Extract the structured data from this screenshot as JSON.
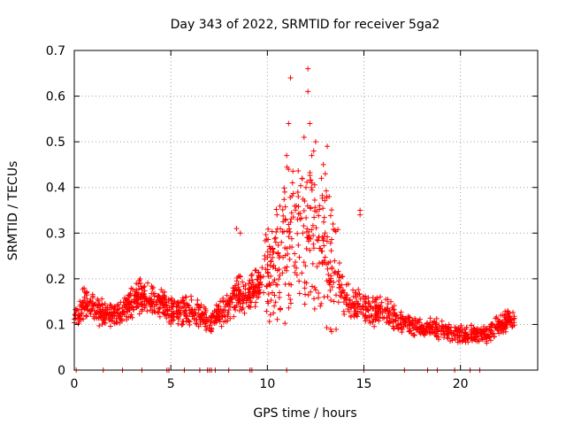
{
  "chart_data": {
    "type": "scatter",
    "title": "Day 343 of 2022, SRMTID for receiver 5ga2",
    "xlabel": "GPS time / hours",
    "ylabel": "SRMTID / TECUs",
    "xlim": [
      0,
      24
    ],
    "ylim": [
      0,
      0.7
    ],
    "xticks": [
      0,
      5,
      10,
      15,
      20
    ],
    "yticks": [
      0,
      0.1,
      0.2,
      0.3,
      0.4,
      0.5,
      0.6,
      0.7
    ],
    "grid": true,
    "marker": "+",
    "color": "#ff0000",
    "profile_x": [
      0,
      0.5,
      1,
      1.5,
      2,
      2.5,
      3,
      3.5,
      4,
      4.5,
      5,
      5.5,
      6,
      6.5,
      7,
      7.5,
      8,
      8.5,
      9,
      9.5,
      10,
      10.5,
      11,
      11.5,
      12,
      12.5,
      13,
      13.5,
      14,
      14.5,
      15,
      15.5,
      16,
      16.5,
      17,
      17.5,
      18,
      18.5,
      19,
      19.5,
      20,
      20.5,
      21,
      21.5,
      22,
      22.5,
      22.8
    ],
    "profile_y": [
      0.11,
      0.15,
      0.14,
      0.12,
      0.12,
      0.13,
      0.15,
      0.16,
      0.15,
      0.15,
      0.13,
      0.13,
      0.13,
      0.12,
      0.1,
      0.12,
      0.14,
      0.17,
      0.16,
      0.19,
      0.21,
      0.24,
      0.27,
      0.29,
      0.31,
      0.3,
      0.27,
      0.22,
      0.16,
      0.14,
      0.14,
      0.13,
      0.13,
      0.12,
      0.1,
      0.1,
      0.09,
      0.09,
      0.09,
      0.08,
      0.08,
      0.08,
      0.08,
      0.08,
      0.1,
      0.11,
      0.1
    ],
    "outliers": [
      {
        "x": 11.2,
        "y": 0.64
      },
      {
        "x": 11.1,
        "y": 0.54
      },
      {
        "x": 12.1,
        "y": 0.66
      },
      {
        "x": 12.1,
        "y": 0.61
      },
      {
        "x": 12.2,
        "y": 0.54
      },
      {
        "x": 11.9,
        "y": 0.51
      },
      {
        "x": 12.4,
        "y": 0.48
      },
      {
        "x": 12.5,
        "y": 0.5
      },
      {
        "x": 12.3,
        "y": 0.47
      },
      {
        "x": 13.1,
        "y": 0.49
      },
      {
        "x": 12.9,
        "y": 0.45
      },
      {
        "x": 13.0,
        "y": 0.43
      },
      {
        "x": 11.0,
        "y": 0.47
      },
      {
        "x": 11.1,
        "y": 0.44
      },
      {
        "x": 11.3,
        "y": 0.41
      },
      {
        "x": 11.6,
        "y": 0.38
      },
      {
        "x": 11.8,
        "y": 0.42
      },
      {
        "x": 12.0,
        "y": 0.4
      },
      {
        "x": 12.7,
        "y": 0.36
      },
      {
        "x": 13.2,
        "y": 0.38
      },
      {
        "x": 10.9,
        "y": 0.39
      },
      {
        "x": 10.5,
        "y": 0.34
      },
      {
        "x": 13.4,
        "y": 0.32
      },
      {
        "x": 14.8,
        "y": 0.35
      },
      {
        "x": 14.8,
        "y": 0.34
      },
      {
        "x": 8.4,
        "y": 0.31
      },
      {
        "x": 8.6,
        "y": 0.3
      },
      {
        "x": 11.5,
        "y": 0.36
      },
      {
        "x": 12.8,
        "y": 0.42
      }
    ],
    "zero_markers_x": [
      0.1,
      1.5,
      2.5,
      3.5,
      4.8,
      4.9,
      5.7,
      6.5,
      6.9,
      7.0,
      7.1,
      7.3,
      8.0,
      9.1,
      9.2,
      11.0,
      15.0,
      17.1,
      18.3,
      18.8,
      19.7,
      20.5,
      21.0
    ]
  }
}
